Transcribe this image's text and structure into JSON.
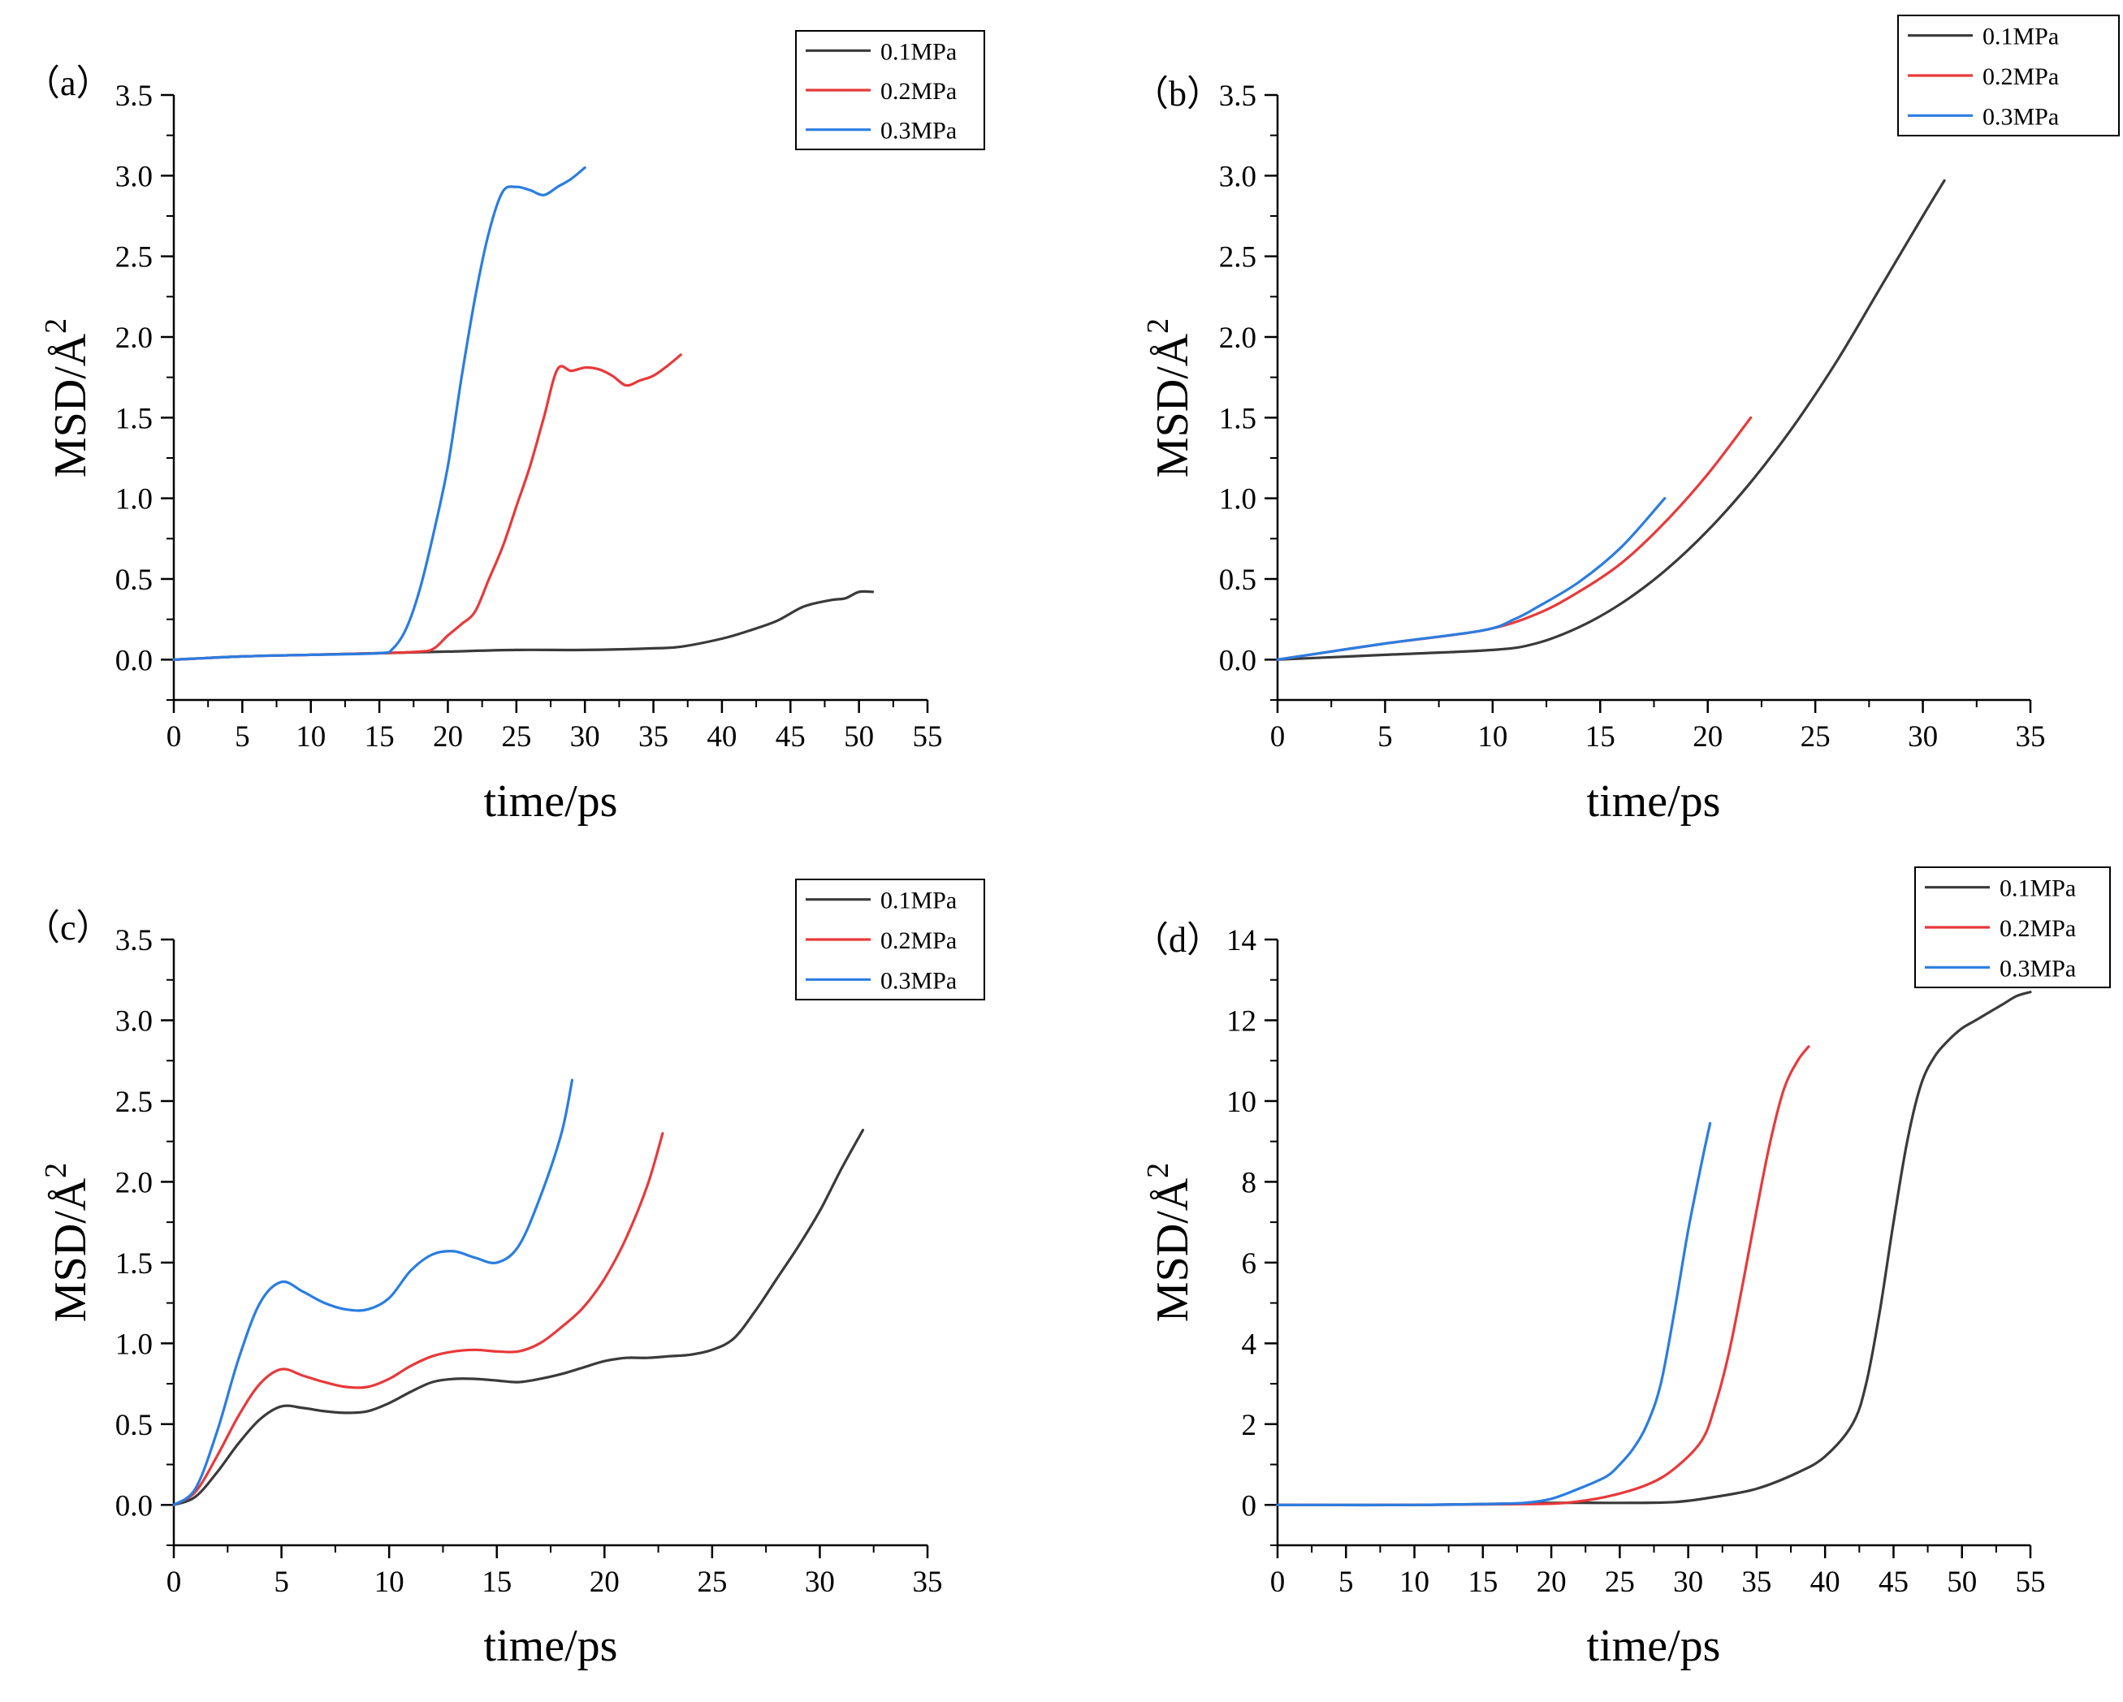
{
  "figure": {
    "colors": {
      "0.1MPa": "#3a3a3a",
      "0.2MPa": "#e8393a",
      "0.3MPa": "#2a7de1"
    }
  },
  "chart_data": [
    {
      "type": "line",
      "panel_label": "（a）",
      "xlabel": "time/ps",
      "ylabel": "MSD/Å",
      "ylabel_sup": "2",
      "xlim": [
        0,
        55
      ],
      "ylim": [
        -0.25,
        3.5
      ],
      "xticks": [
        0,
        5,
        10,
        15,
        20,
        25,
        30,
        35,
        40,
        45,
        50,
        55
      ],
      "xtick_labels": [
        "0",
        "5",
        "10",
        "15",
        "20",
        "25",
        "30",
        "35",
        "40",
        "45",
        "50",
        "55"
      ],
      "yticks": [
        0.0,
        0.5,
        1.0,
        1.5,
        2.0,
        2.5,
        3.0,
        3.5
      ],
      "ytick_labels": [
        "0.0",
        "0.5",
        "1.0",
        "1.5",
        "2.0",
        "2.5",
        "3.0",
        "3.5"
      ],
      "legend": [
        "0.1MPa",
        "0.2MPa",
        "0.3MPa"
      ],
      "legend_position": "top-right",
      "series": [
        {
          "name": "0.1MPa",
          "x": [
            0,
            5,
            10,
            15,
            20,
            25,
            30,
            35,
            37,
            40,
            42,
            44,
            46,
            48,
            49,
            50,
            51
          ],
          "y": [
            0,
            0.02,
            0.03,
            0.04,
            0.05,
            0.06,
            0.06,
            0.07,
            0.08,
            0.13,
            0.18,
            0.24,
            0.33,
            0.37,
            0.38,
            0.42,
            0.42
          ]
        },
        {
          "name": "0.2MPa",
          "x": [
            0,
            5,
            10,
            15,
            18,
            19,
            20,
            21,
            22,
            23,
            24,
            25,
            26,
            27,
            28,
            29,
            30,
            31,
            32,
            33,
            34,
            35,
            36,
            37
          ],
          "y": [
            0,
            0.02,
            0.03,
            0.04,
            0.05,
            0.07,
            0.15,
            0.22,
            0.3,
            0.5,
            0.7,
            0.95,
            1.2,
            1.5,
            1.8,
            1.79,
            1.81,
            1.8,
            1.76,
            1.7,
            1.73,
            1.76,
            1.82,
            1.89
          ]
        },
        {
          "name": "0.3MPa",
          "x": [
            0,
            5,
            10,
            15,
            16,
            17,
            18,
            19,
            20,
            21,
            22,
            23,
            24,
            25,
            26,
            27,
            28,
            29,
            30
          ],
          "y": [
            0,
            0.02,
            0.03,
            0.04,
            0.07,
            0.2,
            0.45,
            0.8,
            1.2,
            1.75,
            2.25,
            2.65,
            2.9,
            2.93,
            2.91,
            2.88,
            2.93,
            2.98,
            3.05
          ]
        }
      ]
    },
    {
      "type": "line",
      "panel_label": "（b）",
      "xlabel": "time/ps",
      "ylabel": "MSD/Å",
      "ylabel_sup": "2",
      "xlim": [
        0,
        35
      ],
      "ylim": [
        -0.25,
        3.5
      ],
      "xticks": [
        0,
        5,
        10,
        15,
        20,
        25,
        30,
        35
      ],
      "xtick_labels": [
        "0",
        "5",
        "10",
        "15",
        "20",
        "25",
        "30",
        "35"
      ],
      "yticks": [
        0.0,
        0.5,
        1.0,
        1.5,
        2.0,
        2.5,
        3.0,
        3.5
      ],
      "ytick_labels": [
        "0.0",
        "0.5",
        "1.0",
        "1.5",
        "2.0",
        "2.5",
        "3.0",
        "3.5"
      ],
      "legend": [
        "0.1MPa",
        "0.2MPa",
        "0.3MPa"
      ],
      "legend_position": "top-right",
      "series": [
        {
          "name": "0.1MPa",
          "x": [
            0,
            5,
            10,
            12,
            14,
            16,
            18,
            20,
            22,
            24,
            26,
            28,
            30,
            31
          ],
          "y": [
            0,
            0.03,
            0.06,
            0.1,
            0.2,
            0.35,
            0.55,
            0.8,
            1.1,
            1.45,
            1.85,
            2.3,
            2.75,
            2.97
          ]
        },
        {
          "name": "0.2MPa",
          "x": [
            0,
            5,
            9.5,
            12,
            14,
            16,
            18,
            20,
            22
          ],
          "y": [
            0,
            0.1,
            0.18,
            0.28,
            0.42,
            0.6,
            0.85,
            1.15,
            1.5
          ]
        },
        {
          "name": "0.3MPa",
          "x": [
            0,
            5,
            9.5,
            11,
            12,
            14,
            16,
            18
          ],
          "y": [
            0,
            0.1,
            0.18,
            0.25,
            0.32,
            0.48,
            0.7,
            1.0
          ]
        }
      ]
    },
    {
      "type": "line",
      "panel_label": "（c）",
      "xlabel": "time/ps",
      "ylabel": "MSD/Å",
      "ylabel_sup": "2",
      "xlim": [
        0,
        35
      ],
      "ylim": [
        -0.25,
        3.5
      ],
      "xticks": [
        0,
        5,
        10,
        15,
        20,
        25,
        30,
        35
      ],
      "xtick_labels": [
        "0",
        "5",
        "10",
        "15",
        "20",
        "25",
        "30",
        "35"
      ],
      "yticks": [
        0.0,
        0.5,
        1.0,
        1.5,
        2.0,
        2.5,
        3.0,
        3.5
      ],
      "ytick_labels": [
        "0.0",
        "0.5",
        "1.0",
        "1.5",
        "2.0",
        "2.5",
        "3.0",
        "3.5"
      ],
      "legend": [
        "0.1MPa",
        "0.2MPa",
        "0.3MPa"
      ],
      "legend_position": "top-right",
      "series": [
        {
          "name": "0.1MPa",
          "x": [
            0,
            1,
            2,
            3,
            4,
            5,
            6,
            7,
            8,
            9,
            10,
            11,
            12,
            13,
            14,
            15,
            16,
            17,
            18,
            19,
            20,
            21,
            22,
            23,
            24,
            25,
            26,
            27,
            28,
            29,
            30,
            31,
            32
          ],
          "y": [
            0,
            0.05,
            0.2,
            0.38,
            0.53,
            0.61,
            0.6,
            0.58,
            0.57,
            0.58,
            0.63,
            0.7,
            0.76,
            0.78,
            0.78,
            0.77,
            0.76,
            0.78,
            0.81,
            0.85,
            0.89,
            0.91,
            0.91,
            0.92,
            0.93,
            0.96,
            1.03,
            1.2,
            1.4,
            1.6,
            1.82,
            2.08,
            2.32
          ]
        },
        {
          "name": "0.2MPa",
          "x": [
            0,
            1,
            2,
            3,
            4,
            5,
            6,
            7,
            8,
            9,
            10,
            11,
            12,
            13,
            14,
            15,
            16,
            17,
            18,
            19,
            20,
            21,
            22,
            22.7
          ],
          "y": [
            0,
            0.08,
            0.3,
            0.55,
            0.75,
            0.84,
            0.8,
            0.76,
            0.73,
            0.73,
            0.78,
            0.86,
            0.92,
            0.95,
            0.96,
            0.95,
            0.95,
            1.0,
            1.1,
            1.22,
            1.4,
            1.65,
            1.98,
            2.3
          ]
        },
        {
          "name": "0.3MPa",
          "x": [
            0,
            1,
            2,
            3,
            4,
            5,
            6,
            7,
            8,
            9,
            10,
            11,
            12,
            13,
            14,
            15,
            16,
            17,
            18,
            18.5
          ],
          "y": [
            0,
            0.1,
            0.45,
            0.9,
            1.25,
            1.38,
            1.32,
            1.25,
            1.21,
            1.21,
            1.28,
            1.45,
            1.55,
            1.57,
            1.53,
            1.5,
            1.6,
            1.9,
            2.3,
            2.63
          ]
        }
      ]
    },
    {
      "type": "line",
      "panel_label": "（d）",
      "xlabel": "time/ps",
      "ylabel": "MSD/Å",
      "ylabel_sup": "2",
      "xlim": [
        0,
        55
      ],
      "ylim": [
        -1,
        14
      ],
      "xticks": [
        0,
        5,
        10,
        15,
        20,
        25,
        30,
        35,
        40,
        45,
        50,
        55
      ],
      "xtick_labels": [
        "0",
        "5",
        "10",
        "15",
        "20",
        "25",
        "30",
        "35",
        "40",
        "45",
        "50",
        "55"
      ],
      "yticks": [
        0,
        2,
        4,
        6,
        8,
        10,
        12,
        14
      ],
      "ytick_labels": [
        "0",
        "2",
        "4",
        "6",
        "8",
        "10",
        "12",
        "14"
      ],
      "legend": [
        "0.1MPa",
        "0.2MPa",
        "0.3MPa"
      ],
      "legend_position": "top-right",
      "series": [
        {
          "name": "0.1MPa",
          "x": [
            0,
            10,
            20,
            25,
            29,
            32,
            35,
            38,
            40,
            42,
            43,
            44,
            45,
            46,
            47,
            48,
            49,
            50,
            51,
            52,
            53,
            54,
            55
          ],
          "y": [
            0,
            0,
            0.05,
            0.05,
            0.07,
            0.2,
            0.4,
            0.8,
            1.2,
            2.0,
            3.0,
            4.8,
            7.0,
            9.0,
            10.4,
            11.1,
            11.5,
            11.8,
            12.0,
            12.2,
            12.4,
            12.6,
            12.7
          ]
        },
        {
          "name": "0.2MPa",
          "x": [
            0,
            10,
            18,
            21,
            24,
            27,
            29,
            31,
            32,
            33,
            34,
            35,
            36,
            37,
            38,
            38.8
          ],
          "y": [
            0,
            0,
            0.02,
            0.05,
            0.2,
            0.5,
            0.9,
            1.6,
            2.5,
            3.8,
            5.5,
            7.3,
            9.0,
            10.3,
            11.0,
            11.35
          ]
        },
        {
          "name": "0.3MPa",
          "x": [
            0,
            10,
            15,
            18,
            20,
            22,
            24,
            25,
            26,
            27,
            28,
            29,
            30,
            31,
            31.6
          ],
          "y": [
            0,
            0,
            0.02,
            0.05,
            0.15,
            0.4,
            0.7,
            1.0,
            1.4,
            2.0,
            3.0,
            4.8,
            6.8,
            8.5,
            9.45
          ]
        }
      ]
    }
  ]
}
